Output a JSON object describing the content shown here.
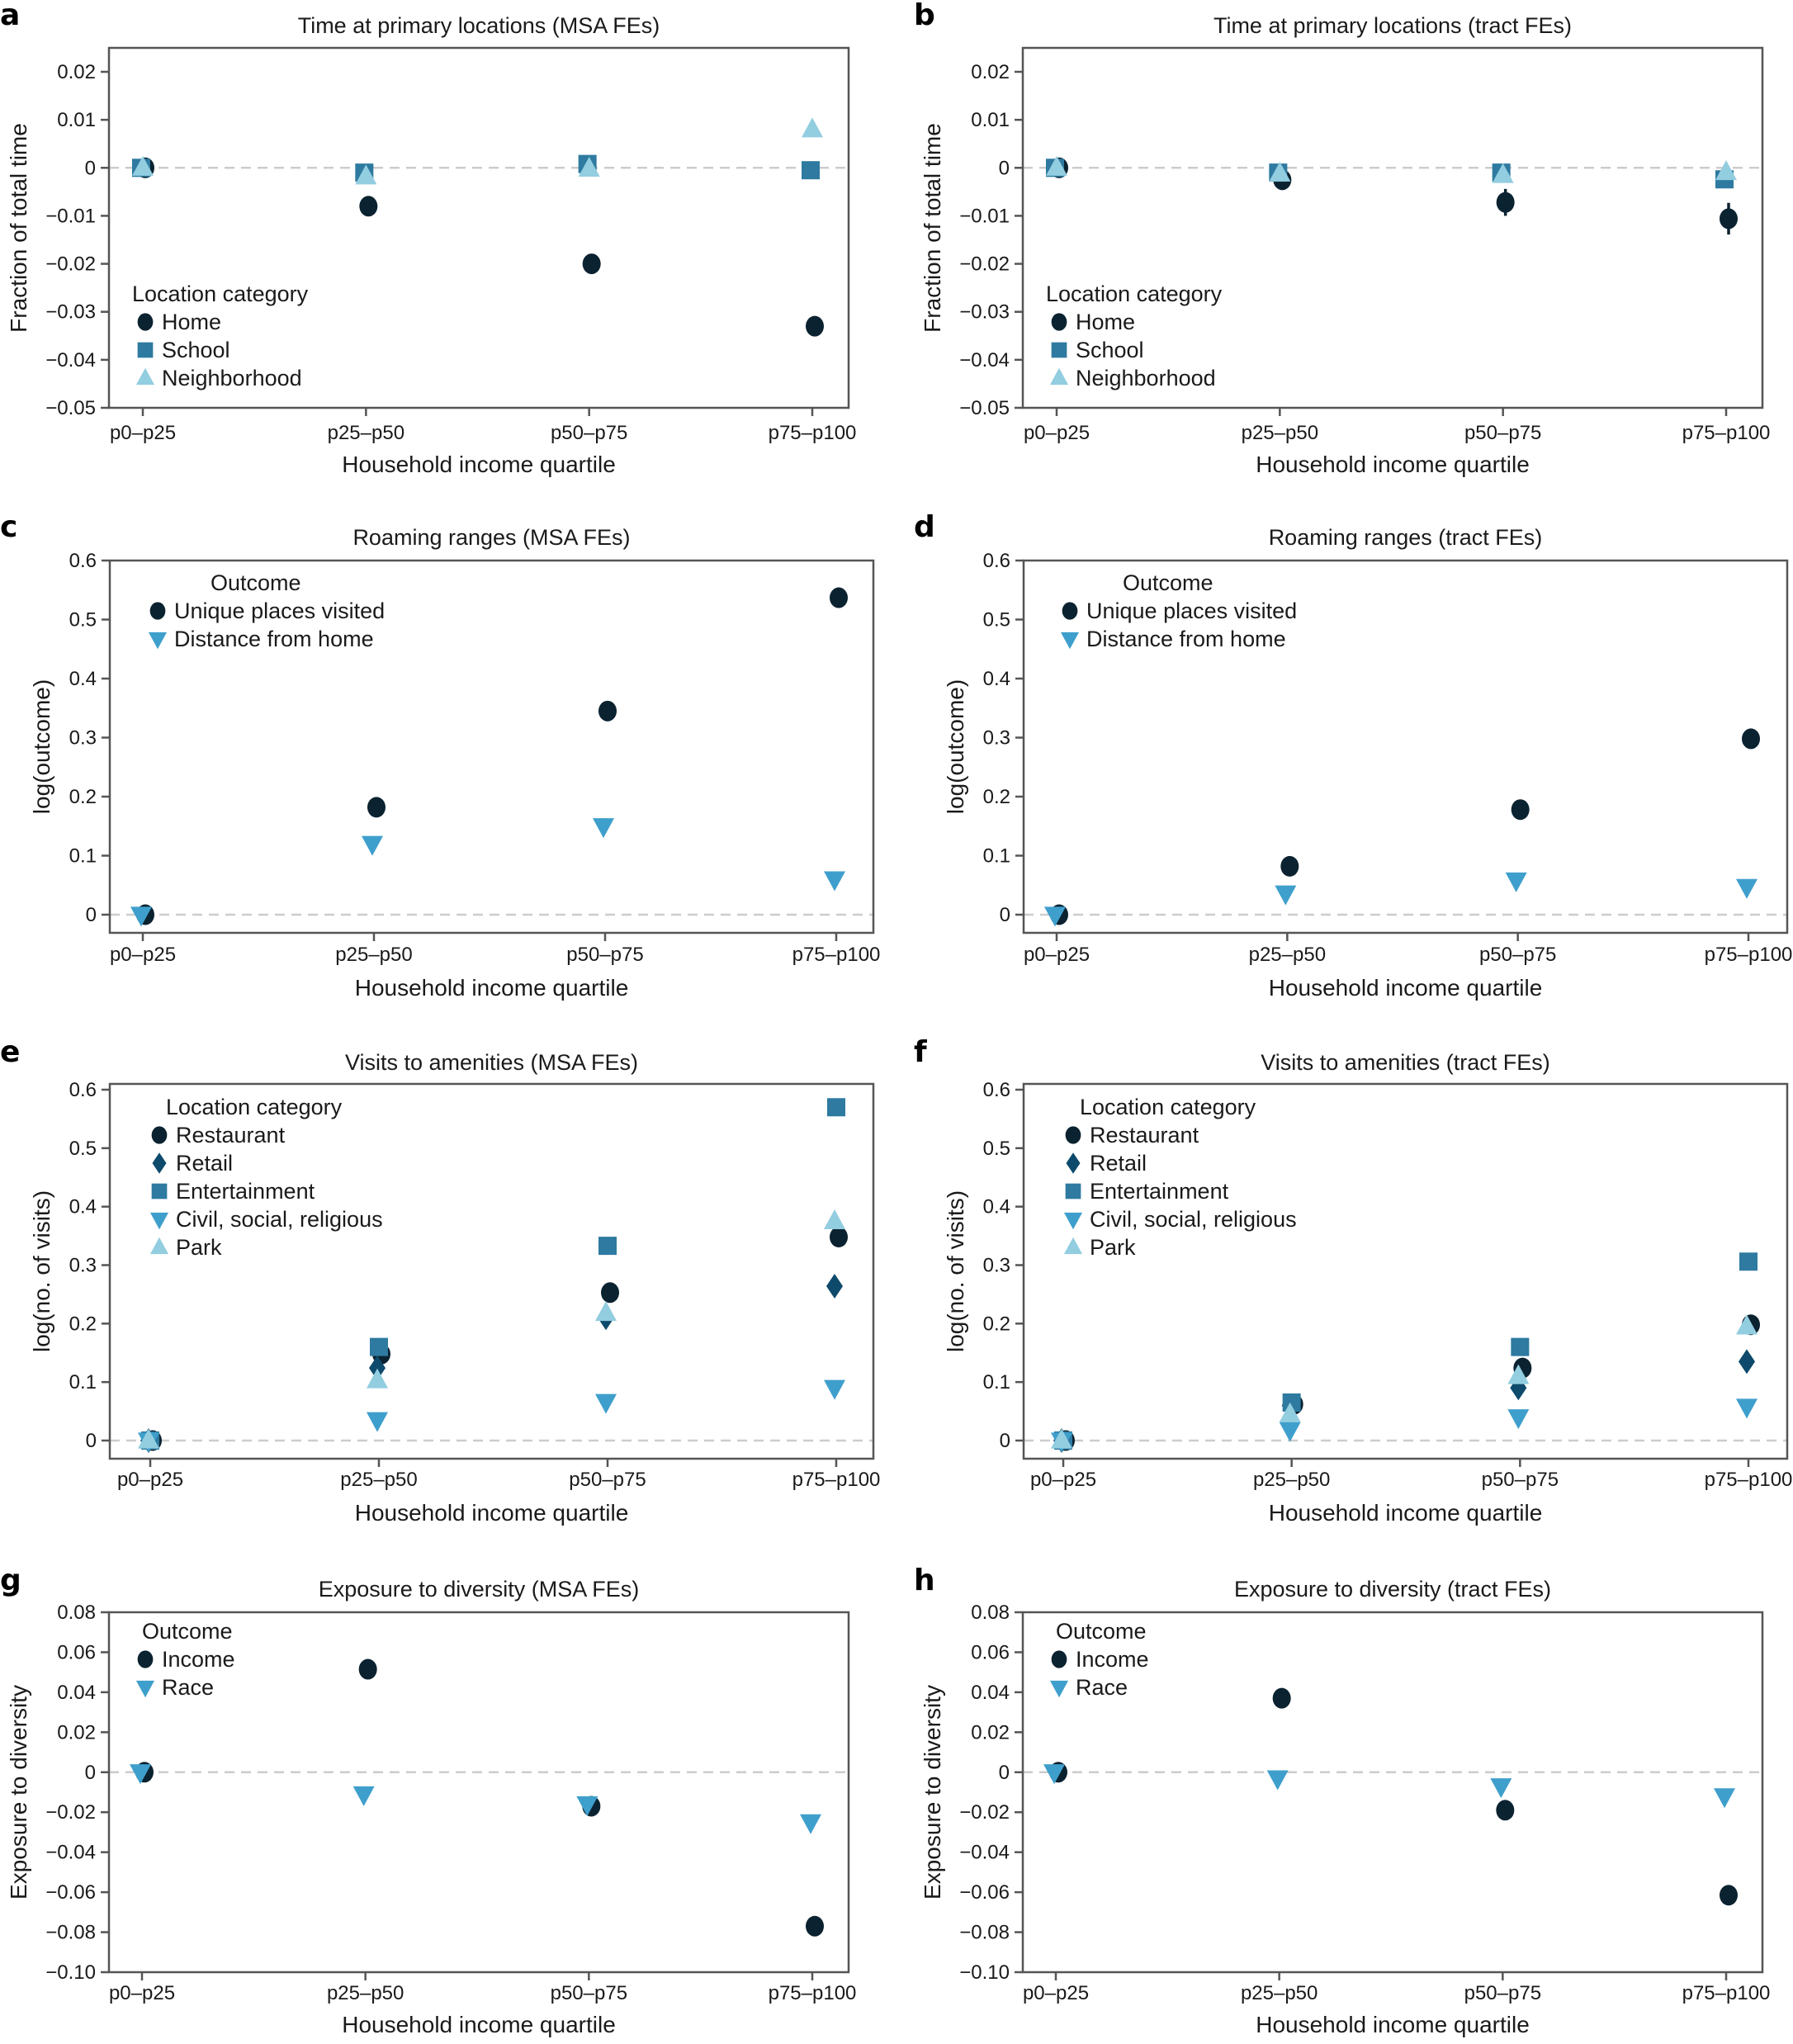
{
  "colors": {
    "Home": "#0b2230",
    "School": "#2e7aa0",
    "Neighborhood": "#92cde0",
    "Unique places visited": "#0b2230",
    "Distance from home": "#3f9fcc",
    "Restaurant": "#0b2230",
    "Retail": "#0d4a6b",
    "Entertainment": "#2e7aa0",
    "Civil, social, religious": "#3f9fcc",
    "Park": "#92cde0",
    "Income": "#0b2230",
    "Race": "#3f9fcc"
  },
  "chart_data": [
    {
      "panel": "a",
      "type": "scatter",
      "title": "Time at primary locations (MSA FEs)",
      "xlabel": "Household income quartile",
      "ylabel": "Fraction of total time",
      "categories": [
        "p0–p25",
        "p25–p50",
        "p50–p75",
        "p75–p100"
      ],
      "ylim": [
        -0.05,
        0.025
      ],
      "yticks": [
        -0.05,
        -0.04,
        -0.03,
        -0.02,
        -0.01,
        0,
        0.01,
        0.02
      ],
      "ytick_labels": [
        "−0.05",
        "−0.04",
        "−0.03",
        "−0.02",
        "−0.01",
        "0",
        "0.01",
        "0.02"
      ],
      "zero_line": true,
      "legend": {
        "title": "Location category",
        "placement": "lower-left"
      },
      "series": [
        {
          "name": "Home",
          "marker": "circle",
          "values": [
            0,
            -0.008,
            -0.02,
            -0.033
          ],
          "ci": [
            0,
            0.0012,
            0.0012,
            0.0012
          ]
        },
        {
          "name": "School",
          "marker": "square",
          "values": [
            0,
            -0.001,
            0.0008,
            -0.0005
          ],
          "ci": [
            0,
            0.0005,
            0.0005,
            0.0005
          ]
        },
        {
          "name": "Neighborhood",
          "marker": "triangle-up",
          "values": [
            0,
            -0.0018,
            -0.0002,
            0.008
          ],
          "ci": [
            0,
            0.0005,
            0.0005,
            0.0005
          ]
        }
      ]
    },
    {
      "panel": "b",
      "type": "scatter",
      "title": "Time at primary locations (tract FEs)",
      "xlabel": "Household income quartile",
      "ylabel": "Fraction of total time",
      "categories": [
        "p0–p25",
        "p25–p50",
        "p50–p75",
        "p75–p100"
      ],
      "ylim": [
        -0.05,
        0.025
      ],
      "yticks": [
        -0.05,
        -0.04,
        -0.03,
        -0.02,
        -0.01,
        0,
        0.01,
        0.02
      ],
      "ytick_labels": [
        "−0.05",
        "−0.04",
        "−0.03",
        "−0.02",
        "−0.01",
        "0",
        "0.01",
        "0.02"
      ],
      "zero_line": true,
      "legend": {
        "title": "Location category",
        "placement": "lower-left"
      },
      "series": [
        {
          "name": "Home",
          "marker": "circle",
          "values": [
            0,
            -0.0025,
            -0.0072,
            -0.0106
          ],
          "ci": [
            0,
            0.0015,
            0.0028,
            0.0033
          ]
        },
        {
          "name": "School",
          "marker": "square",
          "values": [
            0,
            -0.001,
            -0.001,
            -0.0024
          ],
          "ci": [
            0,
            0.0008,
            0.0009,
            0.0012
          ]
        },
        {
          "name": "Neighborhood",
          "marker": "triangle-up",
          "values": [
            0,
            -0.0012,
            -0.0015,
            -0.0009
          ],
          "ci": [
            0,
            0.0008,
            0.0008,
            0.0008
          ]
        }
      ]
    },
    {
      "panel": "c",
      "type": "scatter",
      "title": "Roaming ranges (MSA FEs)",
      "xlabel": "Household income quartile",
      "ylabel": "log(outcome)",
      "categories": [
        "p0–p25",
        "p25–p50",
        "p50–p75",
        "p75–p100"
      ],
      "ylim": [
        -0.03,
        0.6
      ],
      "yticks": [
        0,
        0.1,
        0.2,
        0.3,
        0.4,
        0.5,
        0.6
      ],
      "ytick_labels": [
        "0",
        "0.1",
        "0.2",
        "0.3",
        "0.4",
        "0.5",
        "0.6"
      ],
      "zero_line": true,
      "legend": {
        "title": "Outcome",
        "placement": "upper-left"
      },
      "series": [
        {
          "name": "Unique places visited",
          "marker": "circle",
          "values": [
            0,
            0.182,
            0.345,
            0.537
          ]
        },
        {
          "name": "Distance from home",
          "marker": "triangle-down",
          "values": [
            0,
            0.12,
            0.15,
            0.06
          ]
        }
      ]
    },
    {
      "panel": "d",
      "type": "scatter",
      "title": "Roaming ranges (tract FEs)",
      "xlabel": "Household income quartile",
      "ylabel": "log(outcome)",
      "categories": [
        "p0–p25",
        "p25–p50",
        "p50–p75",
        "p75–p100"
      ],
      "ylim": [
        -0.03,
        0.6
      ],
      "yticks": [
        0,
        0.1,
        0.2,
        0.3,
        0.4,
        0.5,
        0.6
      ],
      "ytick_labels": [
        "0",
        "0.1",
        "0.2",
        "0.3",
        "0.4",
        "0.5",
        "0.6"
      ],
      "zero_line": true,
      "legend": {
        "title": "Outcome",
        "placement": "upper-left"
      },
      "series": [
        {
          "name": "Unique places visited",
          "marker": "circle",
          "values": [
            0,
            0.082,
            0.178,
            0.298
          ]
        },
        {
          "name": "Distance from home",
          "marker": "triangle-down",
          "values": [
            0,
            0.036,
            0.058,
            0.047
          ]
        }
      ]
    },
    {
      "panel": "e",
      "type": "scatter",
      "title": "Visits to amenities (MSA FEs)",
      "xlabel": "Household income quartile",
      "ylabel": "log(no. of visits)",
      "categories": [
        "p0–p25",
        "p25–p50",
        "p50–p75",
        "p75–p100"
      ],
      "ylim": [
        -0.03,
        0.61
      ],
      "yticks": [
        0,
        0.1,
        0.2,
        0.3,
        0.4,
        0.5,
        0.6
      ],
      "ytick_labels": [
        "0",
        "0.1",
        "0.2",
        "0.3",
        "0.4",
        "0.5",
        "0.6"
      ],
      "zero_line": true,
      "legend": {
        "title": "Location category",
        "placement": "upper-left"
      },
      "series": [
        {
          "name": "Restaurant",
          "marker": "circle",
          "values": [
            0,
            0.148,
            0.253,
            0.348
          ]
        },
        {
          "name": "Retail",
          "marker": "diamond",
          "values": [
            0,
            0.124,
            0.21,
            0.264
          ]
        },
        {
          "name": "Entertainment",
          "marker": "square",
          "values": [
            0,
            0.16,
            0.333,
            0.57
          ]
        },
        {
          "name": "Civil, social, religious",
          "marker": "triangle-down",
          "values": [
            0,
            0.035,
            0.066,
            0.09
          ]
        },
        {
          "name": "Park",
          "marker": "triangle-up",
          "values": [
            0,
            0.103,
            0.218,
            0.375
          ]
        }
      ]
    },
    {
      "panel": "f",
      "type": "scatter",
      "title": "Visits to amenities (tract FEs)",
      "xlabel": "Household income quartile",
      "ylabel": "log(no. of visits)",
      "categories": [
        "p0–p25",
        "p25–p50",
        "p50–p75",
        "p75–p100"
      ],
      "ylim": [
        -0.03,
        0.61
      ],
      "yticks": [
        0,
        0.1,
        0.2,
        0.3,
        0.4,
        0.5,
        0.6
      ],
      "ytick_labels": [
        "0",
        "0.1",
        "0.2",
        "0.3",
        "0.4",
        "0.5",
        "0.6"
      ],
      "zero_line": true,
      "legend": {
        "title": "Location category",
        "placement": "upper-left"
      },
      "series": [
        {
          "name": "Restaurant",
          "marker": "circle",
          "values": [
            0,
            0.062,
            0.124,
            0.198
          ]
        },
        {
          "name": "Retail",
          "marker": "diamond",
          "values": [
            0,
            0.06,
            0.09,
            0.135
          ]
        },
        {
          "name": "Entertainment",
          "marker": "square",
          "values": [
            0,
            0.065,
            0.16,
            0.306
          ]
        },
        {
          "name": "Civil, social, religious",
          "marker": "triangle-down",
          "values": [
            0,
            0.018,
            0.04,
            0.058
          ]
        },
        {
          "name": "Park",
          "marker": "triangle-up",
          "values": [
            0,
            0.045,
            0.11,
            0.195
          ]
        }
      ]
    },
    {
      "panel": "g",
      "type": "scatter",
      "title": "Exposure to diversity (MSA FEs)",
      "xlabel": "Household income quartile",
      "ylabel": "Exposure to diversity",
      "categories": [
        "p0–p25",
        "p25–p50",
        "p50–p75",
        "p75–p100"
      ],
      "ylim": [
        -0.1,
        0.08
      ],
      "yticks": [
        -0.1,
        -0.08,
        -0.06,
        -0.04,
        -0.02,
        0,
        0.02,
        0.04,
        0.06,
        0.08
      ],
      "ytick_labels": [
        "−0.10",
        "−0.08",
        "−0.06",
        "−0.04",
        "−0.02",
        "0",
        "0.02",
        "0.04",
        "0.06",
        "0.08"
      ],
      "zero_line": true,
      "legend": {
        "title": "Outcome",
        "placement": "upper-left"
      },
      "series": [
        {
          "name": "Income",
          "marker": "circle",
          "values": [
            0,
            0.0515,
            -0.017,
            -0.077
          ]
        },
        {
          "name": "Race",
          "marker": "triangle-down",
          "values": [
            0,
            -0.011,
            -0.016,
            -0.025
          ]
        }
      ]
    },
    {
      "panel": "h",
      "type": "scatter",
      "title": "Exposure to diversity (tract FEs)",
      "xlabel": "Household income quartile",
      "ylabel": "Exposure to diversity",
      "categories": [
        "p0–p25",
        "p25–p50",
        "p50–p75",
        "p75–p100"
      ],
      "ylim": [
        -0.1,
        0.08
      ],
      "yticks": [
        -0.1,
        -0.08,
        -0.06,
        -0.04,
        -0.02,
        0,
        0.02,
        0.04,
        0.06,
        0.08
      ],
      "ytick_labels": [
        "−0.10",
        "−0.08",
        "−0.06",
        "−0.04",
        "−0.02",
        "0",
        "0.02",
        "0.04",
        "0.06",
        "0.08"
      ],
      "zero_line": true,
      "legend": {
        "title": "Outcome",
        "placement": "upper-left"
      },
      "series": [
        {
          "name": "Income",
          "marker": "circle",
          "values": [
            0,
            0.037,
            -0.019,
            -0.0615
          ]
        },
        {
          "name": "Race",
          "marker": "triangle-down",
          "values": [
            0,
            -0.003,
            -0.007,
            -0.012
          ]
        }
      ]
    }
  ]
}
